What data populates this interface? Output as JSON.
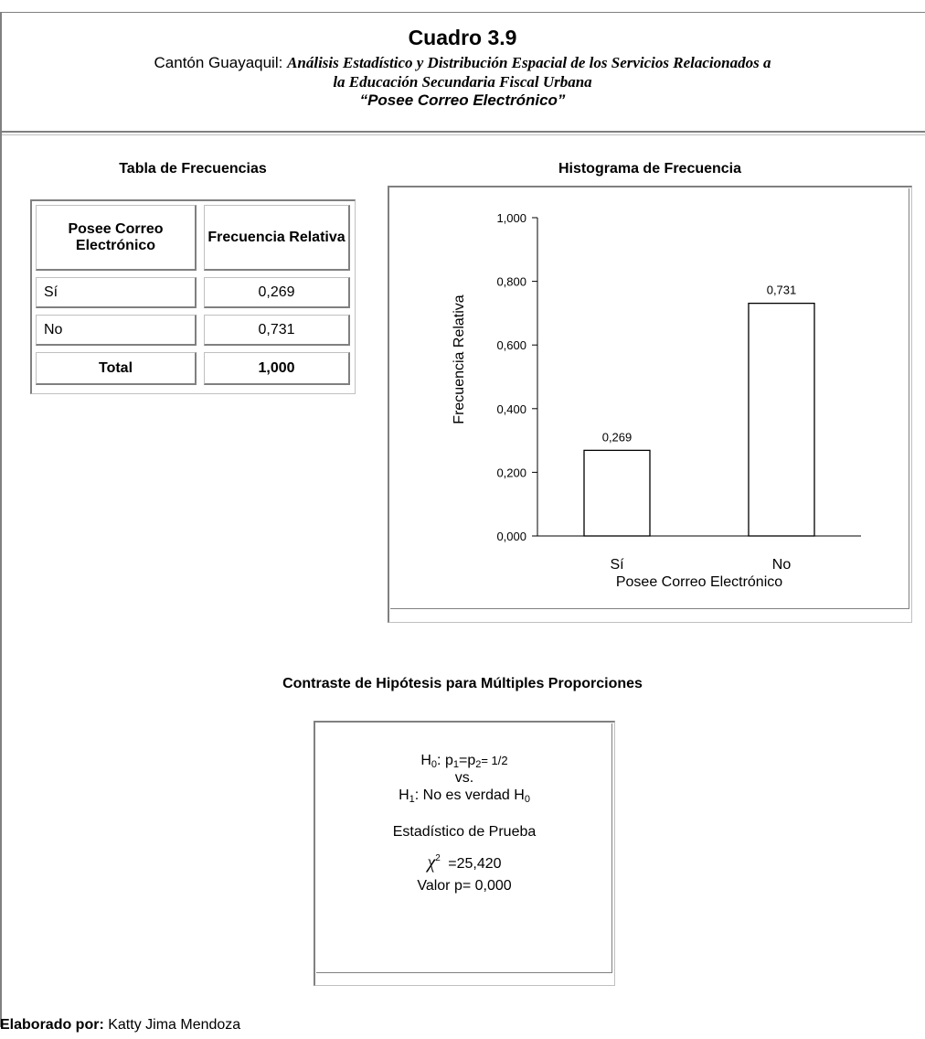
{
  "header": {
    "title": "Cuadro 3.9",
    "subtitle_prefix": "Cantón Guayaquil: ",
    "subtitle_italic_1": "Análisis Estadístico y Distribución Espacial  de los Servicios Relacionados a",
    "subtitle_italic_2": "la Educación Secundaria Fiscal Urbana",
    "subtitle_quote": "“Posee Correo Electrónico”"
  },
  "table": {
    "section_title": "Tabla de Frecuencias",
    "col1_header": "Posee Correo Electrónico",
    "col2_header": "Frecuencia Relativa",
    "rows": [
      {
        "label": "Sí",
        "value": "0,269"
      },
      {
        "label": "No",
        "value": "0,731"
      }
    ],
    "total_label": "Total",
    "total_value": "1,000"
  },
  "chart": {
    "section_title": "Histograma de Frecuencia"
  },
  "chart_data": {
    "type": "bar",
    "title": "Histograma de Frecuencia",
    "categories": [
      "Sí",
      "No"
    ],
    "values": [
      0.269,
      0.731
    ],
    "data_labels": [
      "0,269",
      "0,731"
    ],
    "xlabel": "Posee Correo Electrónico",
    "ylabel": "Frecuencia Relativa",
    "ylim": [
      0,
      1
    ],
    "yticks": [
      "0,000",
      "0,200",
      "0,400",
      "0,600",
      "0,800",
      "1,000"
    ],
    "grid": false
  },
  "hypothesis": {
    "section_title": "Contraste de Hipótesis para  Múltiples Proporciones",
    "h0_prefix": "H",
    "h0_sub": "0",
    "h0_rest": ": p",
    "h0_p1_sub": "1",
    "h0_eq": "=p",
    "h0_p2_sub": "2",
    "h0_value": "= 1/2",
    "vs": "vs.",
    "h1_prefix": "H",
    "h1_sub": "1",
    "h1_rest": ": No es verdad H",
    "h1_h0_sub": "0",
    "statistic_label": "Estadístico de Prueba",
    "chi_symbol": "χ",
    "chi_exp": "2",
    "chi_value": " =25,420",
    "p_value": "Valor p= 0,000"
  },
  "footer": {
    "label": "Elaborado por:",
    "author": " Katty Jima Mendoza"
  }
}
